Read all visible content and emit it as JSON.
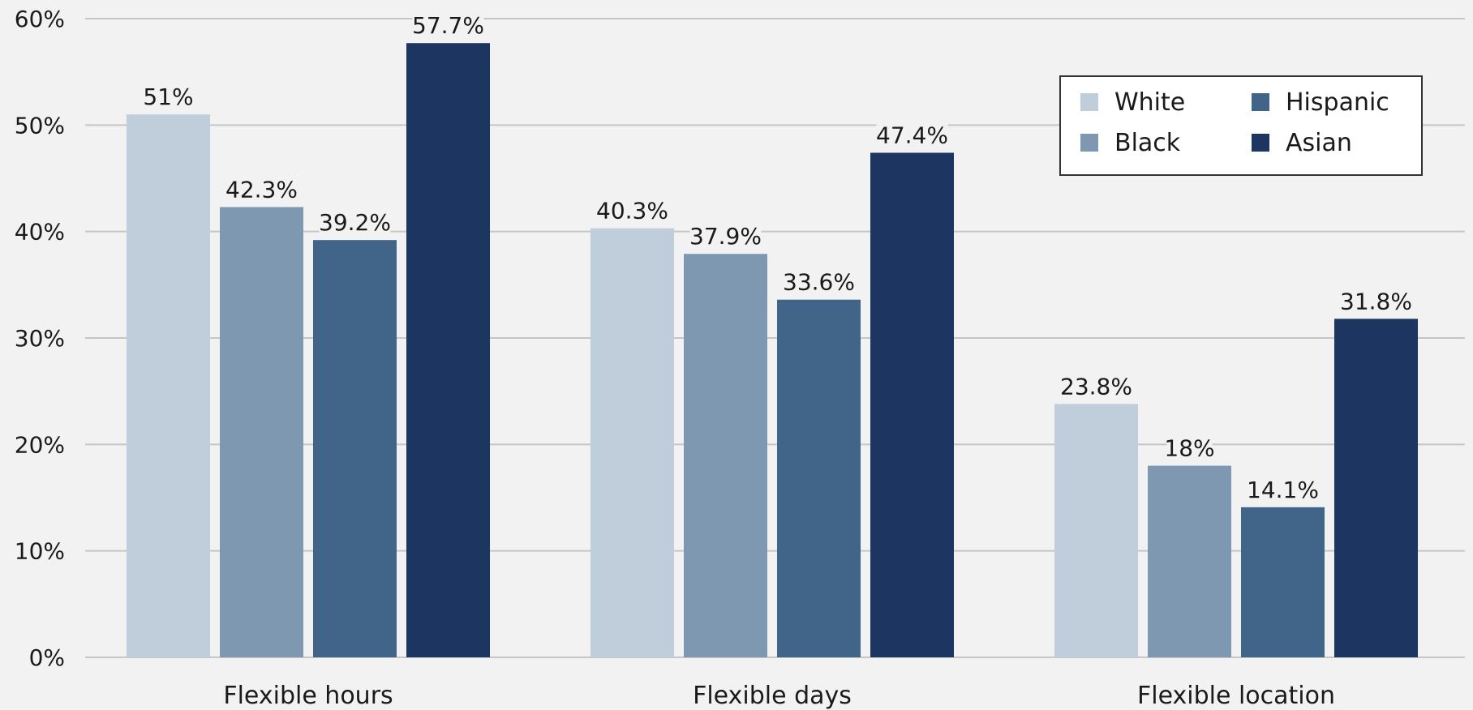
{
  "chart_data": {
    "type": "bar",
    "categories": [
      "Flexible hours",
      "Flexible days",
      "Flexible location"
    ],
    "series": [
      {
        "name": "White",
        "values": [
          51,
          40.3,
          23.8
        ],
        "labels": [
          "51%",
          "40.3%",
          "23.8%"
        ],
        "color": "#c0cedc"
      },
      {
        "name": "Black",
        "values": [
          42.3,
          37.9,
          18
        ],
        "labels": [
          "42.3%",
          "37.9%",
          "18%"
        ],
        "color": "#7f98b1"
      },
      {
        "name": "Hispanic",
        "values": [
          39.2,
          33.6,
          14.1
        ],
        "labels": [
          "39.2%",
          "33.6%",
          "14.1%"
        ],
        "color": "#406589"
      },
      {
        "name": "Asian",
        "values": [
          57.7,
          47.4,
          31.8
        ],
        "labels": [
          "57.7%",
          "47.4%",
          "31.8%"
        ],
        "color": "#1c3561"
      }
    ],
    "ylim": [
      0,
      60
    ],
    "yticks": [
      0,
      10,
      20,
      30,
      40,
      50,
      60
    ],
    "ytick_labels": [
      "0%",
      "10%",
      "20%",
      "30%",
      "40%",
      "50%",
      "60%"
    ],
    "grid": true,
    "legend_position": "top-right",
    "title": "",
    "xlabel": "",
    "ylabel": ""
  },
  "colors": {
    "background": "#f2f2f2",
    "grid": "#c6c6c6",
    "legend_border": "#333333",
    "legend_background": "#ffffff"
  }
}
